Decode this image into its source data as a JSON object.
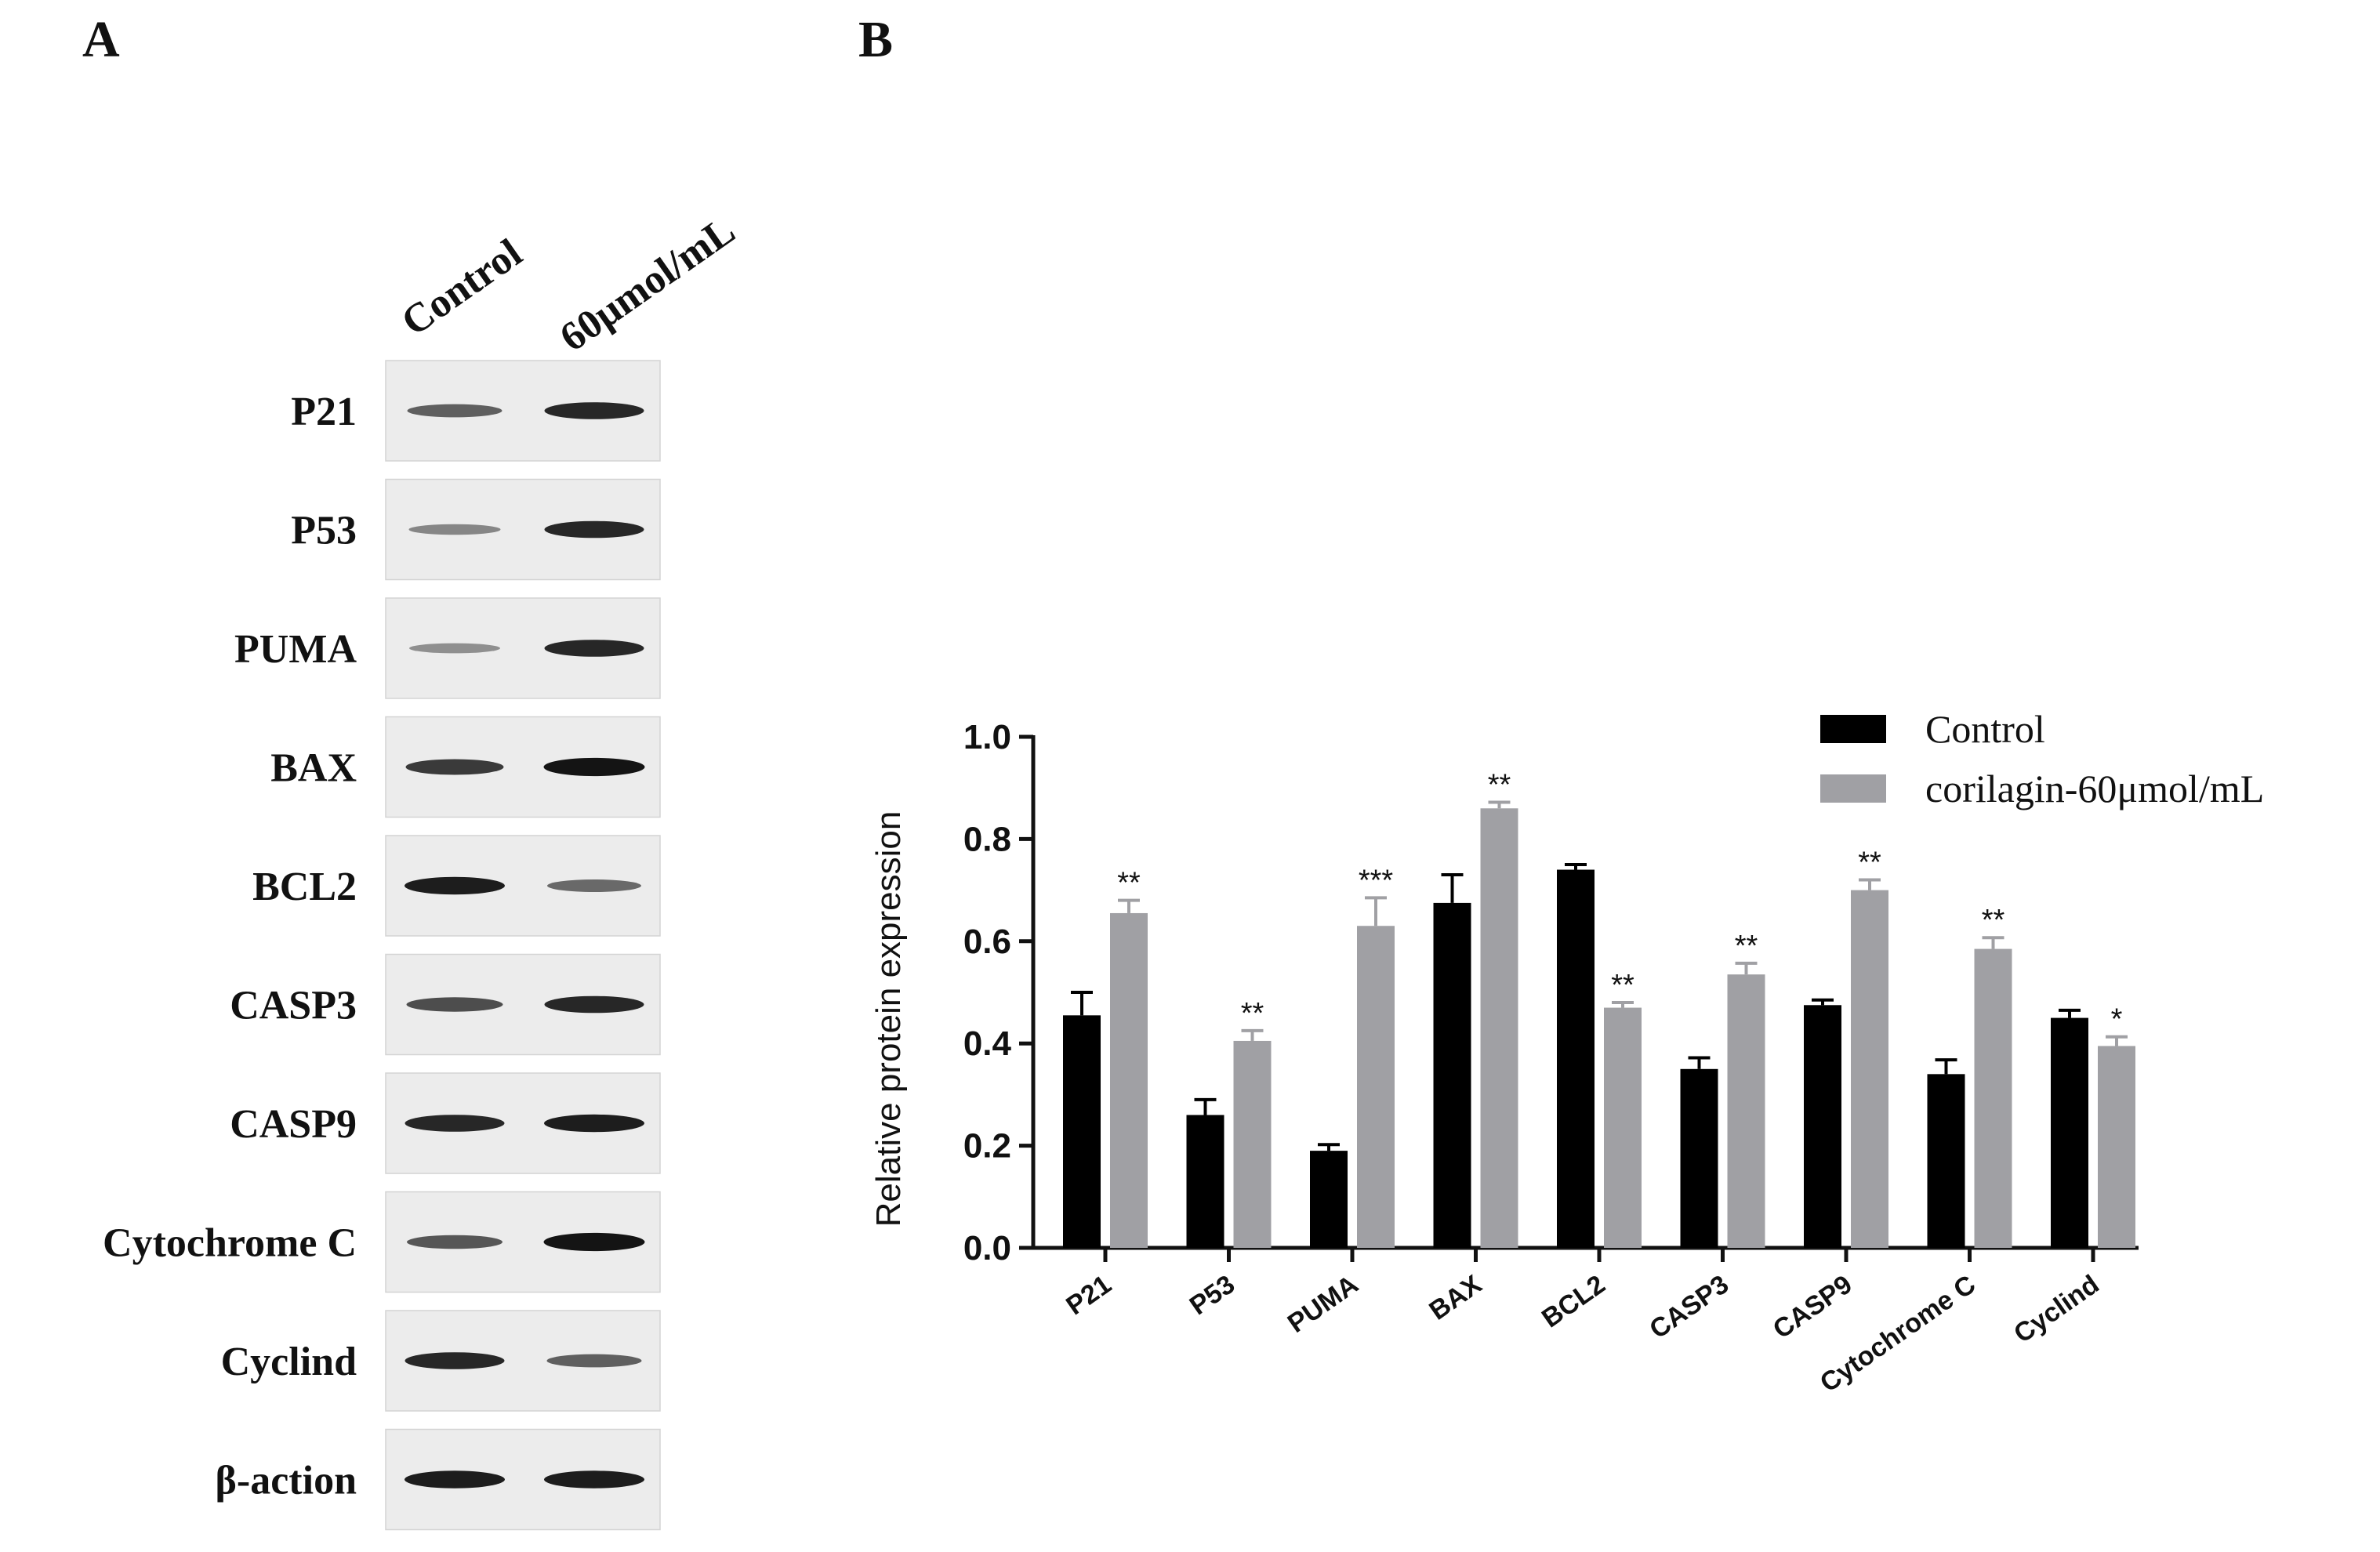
{
  "panels": {
    "a": "A",
    "b": "B"
  },
  "blot": {
    "lanes": [
      "Control",
      "60μmol/mL"
    ],
    "rows": [
      {
        "label": "P21",
        "bands": [
          0.55,
          0.85
        ]
      },
      {
        "label": "P53",
        "bands": [
          0.35,
          0.85
        ]
      },
      {
        "label": "PUMA",
        "bands": [
          0.3,
          0.85
        ]
      },
      {
        "label": "BAX",
        "bands": [
          0.75,
          0.95
        ]
      },
      {
        "label": "BCL2",
        "bands": [
          0.9,
          0.5
        ]
      },
      {
        "label": "CASP3",
        "bands": [
          0.65,
          0.85
        ]
      },
      {
        "label": "CASP9",
        "bands": [
          0.85,
          0.9
        ]
      },
      {
        "label": "Cytochrome  C",
        "bands": [
          0.6,
          0.95
        ]
      },
      {
        "label": "Cyclind",
        "bands": [
          0.85,
          0.55
        ]
      },
      {
        "label": "β-action",
        "bands": [
          0.9,
          0.9
        ]
      }
    ]
  },
  "chart_data": {
    "type": "bar",
    "ylabel": "Relative protein expression",
    "ylim": [
      0,
      1.0
    ],
    "yticks": [
      "0.0",
      "0.2",
      "0.4",
      "0.6",
      "0.8",
      "1.0"
    ],
    "categories": [
      "P21",
      "P53",
      "PUMA",
      "BAX",
      "BCL2",
      "CASP3",
      "CASP9",
      "Cytochrome C",
      "Cyclind"
    ],
    "series": [
      {
        "name": "Control",
        "color": "#000000",
        "values": [
          0.455,
          0.26,
          0.19,
          0.675,
          0.74,
          0.35,
          0.475,
          0.34,
          0.45
        ],
        "errors": [
          0.045,
          0.03,
          0.012,
          0.055,
          0.01,
          0.022,
          0.01,
          0.028,
          0.015
        ]
      },
      {
        "name": "corilagin-60μmol/mL",
        "color": "#a0a0a4",
        "values": [
          0.655,
          0.405,
          0.63,
          0.86,
          0.47,
          0.535,
          0.7,
          0.585,
          0.395
        ],
        "errors": [
          0.025,
          0.02,
          0.055,
          0.012,
          0.01,
          0.022,
          0.02,
          0.022,
          0.018
        ]
      }
    ],
    "significance": [
      "**",
      "**",
      "***",
      "**",
      "**",
      "**",
      "**",
      "**",
      "*"
    ],
    "legend": {
      "position": "top-right"
    }
  }
}
